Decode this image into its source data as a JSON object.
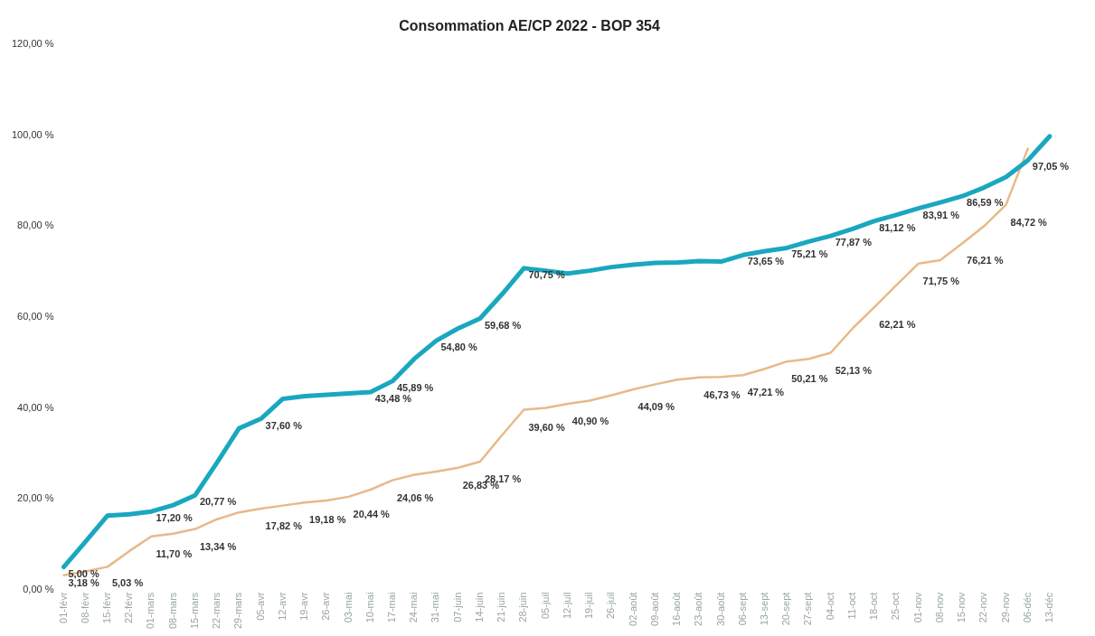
{
  "chart_data": {
    "type": "line",
    "title": "Consommation AE/CP 2022 - BOP 354",
    "categories": [
      "01-févr",
      "08-févr",
      "15-févr",
      "22-févr",
      "01-mars",
      "08-mars",
      "15-mars",
      "22-mars",
      "29-mars",
      "05-avr",
      "12-avr",
      "19-avr",
      "26-avr",
      "03-mai",
      "10-mai",
      "17-mai",
      "24-mai",
      "31-mai",
      "07-juin",
      "14-juin",
      "21-juin",
      "28-juin",
      "05-juil",
      "12-juil",
      "19-juil",
      "26-juil",
      "02-août",
      "09-août",
      "16-août",
      "23-août",
      "30-août",
      "06-sept",
      "13-sept",
      "20-sept",
      "27-sept",
      "04-oct",
      "11-oct",
      "18-oct",
      "25-oct",
      "01-nov",
      "08-nov",
      "15-nov",
      "22-nov",
      "29-nov",
      "06-déc",
      "13-déc"
    ],
    "series": [
      {
        "color": "#1aa7bf",
        "values": [
          5.0,
          10.6,
          16.3,
          16.6,
          17.2,
          18.6,
          20.77,
          28.0,
          35.5,
          37.6,
          42.0,
          42.6,
          42.9,
          43.2,
          43.48,
          45.89,
          50.8,
          54.8,
          57.5,
          59.68,
          65.0,
          70.75,
          70.2,
          69.6,
          70.2,
          71.0,
          71.5,
          71.9,
          72.0,
          72.3,
          72.2,
          73.65,
          74.5,
          75.21,
          76.6,
          77.87,
          79.4,
          81.12,
          82.5,
          83.91,
          85.2,
          86.59,
          88.5,
          90.8,
          94.5,
          99.8
        ],
        "value_labels": [
          "5,00 %",
          null,
          null,
          null,
          "17,20 %",
          null,
          "20,77 %",
          null,
          null,
          "37,60 %",
          null,
          null,
          null,
          null,
          "43,48 %",
          "45,89 %",
          null,
          "54,80 %",
          null,
          "59,68 %",
          null,
          "70,75 %",
          null,
          null,
          null,
          null,
          null,
          null,
          null,
          null,
          null,
          "73,65 %",
          null,
          "75,21 %",
          null,
          "77,87 %",
          null,
          "81,12 %",
          null,
          "83,91 %",
          null,
          "86,59 %",
          null,
          null,
          null,
          null
        ]
      },
      {
        "color": "#e8b98a",
        "values": [
          3.18,
          4.0,
          5.03,
          8.5,
          11.7,
          12.3,
          13.34,
          15.5,
          17.0,
          17.82,
          18.5,
          19.18,
          19.6,
          20.44,
          22.0,
          24.06,
          25.3,
          26.0,
          26.83,
          28.17,
          34.0,
          39.6,
          40.0,
          40.9,
          41.6,
          42.8,
          44.09,
          45.2,
          46.2,
          46.73,
          46.8,
          47.21,
          48.6,
          50.21,
          50.8,
          52.13,
          57.5,
          62.21,
          67.0,
          71.75,
          72.5,
          76.21,
          80.0,
          84.72,
          97.05,
          null
        ],
        "value_labels": [
          "3,18 %",
          null,
          "5,03 %",
          null,
          "11,70 %",
          null,
          "13,34 %",
          null,
          null,
          "17,82 %",
          null,
          "19,18 %",
          null,
          "20,44 %",
          null,
          "24,06 %",
          null,
          null,
          "26,83 %",
          "28,17 %",
          null,
          "39,60 %",
          null,
          "40,90 %",
          null,
          null,
          "44,09 %",
          null,
          null,
          "46,73 %",
          null,
          "47,21 %",
          null,
          "50,21 %",
          null,
          "52,13 %",
          null,
          "62,21 %",
          null,
          "71,75 %",
          null,
          "76,21 %",
          null,
          "84,72 %",
          "97,05 %",
          null
        ]
      }
    ],
    "ylim": [
      0,
      120
    ],
    "yticks": [
      {
        "value": 0,
        "label": "0,00 %"
      },
      {
        "value": 20,
        "label": "20,00 %"
      },
      {
        "value": 40,
        "label": "40,00 %"
      },
      {
        "value": 60,
        "label": "60,00 %"
      },
      {
        "value": 80,
        "label": "80,00 %"
      },
      {
        "value": 100,
        "label": "100,00 %"
      },
      {
        "value": 120,
        "label": "120,00 %"
      }
    ],
    "grid": false,
    "legend": false,
    "marker": "none",
    "line_style": "solid"
  }
}
